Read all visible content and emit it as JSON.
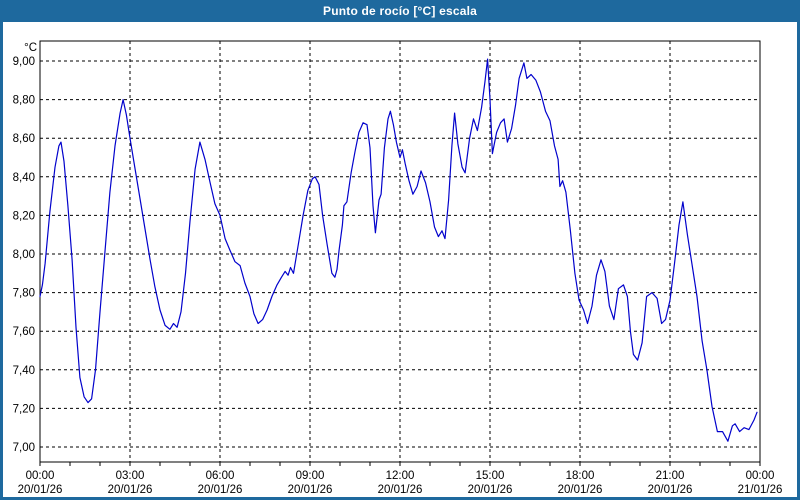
{
  "title_bar": {
    "title": "Punto de rocío [°C] escala"
  },
  "colors": {
    "title_bar_bg": "#1E699E",
    "window_border": "#1E699E",
    "title_text": "#FFFFFF",
    "series_line": "#0202CC",
    "grid": "#000000",
    "axis": "#000000",
    "plot_bg": "#FFFFFF"
  },
  "chart_data": {
    "type": "line",
    "title": "Punto de rocío [°C] escala",
    "unit_label": "°C",
    "xlabel": "",
    "ylabel": "°C",
    "ylim": [
      7.0,
      9.0
    ],
    "xlim_hours": [
      0,
      24
    ],
    "grid": true,
    "legend": false,
    "minor_x_tick_every_hours": 1,
    "y_ticks": [
      {
        "value": 9.0,
        "label": "9,00"
      },
      {
        "value": 8.8,
        "label": "8,80"
      },
      {
        "value": 8.6,
        "label": "8,60"
      },
      {
        "value": 8.4,
        "label": "8,40"
      },
      {
        "value": 8.2,
        "label": "8,20"
      },
      {
        "value": 8.0,
        "label": "8,00"
      },
      {
        "value": 7.8,
        "label": "7,80"
      },
      {
        "value": 7.6,
        "label": "7,60"
      },
      {
        "value": 7.4,
        "label": "7,40"
      },
      {
        "value": 7.2,
        "label": "7,20"
      },
      {
        "value": 7.0,
        "label": "7,00"
      }
    ],
    "x_ticks": [
      {
        "hour": 0,
        "time": "00:00",
        "date": "20/01/26"
      },
      {
        "hour": 3,
        "time": "03:00",
        "date": "20/01/26"
      },
      {
        "hour": 6,
        "time": "06:00",
        "date": "20/01/26"
      },
      {
        "hour": 9,
        "time": "09:00",
        "date": "20/01/26"
      },
      {
        "hour": 12,
        "time": "12:00",
        "date": "20/01/26"
      },
      {
        "hour": 15,
        "time": "15:00",
        "date": "20/01/26"
      },
      {
        "hour": 18,
        "time": "18:00",
        "date": "20/01/26"
      },
      {
        "hour": 21,
        "time": "21:00",
        "date": "20/01/26"
      },
      {
        "hour": 24,
        "time": "00:00",
        "date": "21/01/26"
      }
    ],
    "series": [
      {
        "name": "Punto de rocío [°C]",
        "color": "#0202CC",
        "points": [
          [
            0.0,
            7.78
          ],
          [
            0.08,
            7.84
          ],
          [
            0.17,
            7.95
          ],
          [
            0.33,
            8.22
          ],
          [
            0.5,
            8.45
          ],
          [
            0.63,
            8.56
          ],
          [
            0.7,
            8.58
          ],
          [
            0.8,
            8.48
          ],
          [
            0.93,
            8.25
          ],
          [
            1.07,
            7.97
          ],
          [
            1.2,
            7.62
          ],
          [
            1.33,
            7.36
          ],
          [
            1.47,
            7.26
          ],
          [
            1.6,
            7.23
          ],
          [
            1.72,
            7.25
          ],
          [
            1.85,
            7.4
          ],
          [
            2.0,
            7.7
          ],
          [
            2.17,
            8.02
          ],
          [
            2.33,
            8.32
          ],
          [
            2.5,
            8.56
          ],
          [
            2.67,
            8.73
          ],
          [
            2.77,
            8.8
          ],
          [
            2.88,
            8.72
          ],
          [
            3.0,
            8.6
          ],
          [
            3.17,
            8.44
          ],
          [
            3.33,
            8.29
          ],
          [
            3.5,
            8.13
          ],
          [
            3.67,
            7.97
          ],
          [
            3.83,
            7.83
          ],
          [
            4.0,
            7.71
          ],
          [
            4.17,
            7.63
          ],
          [
            4.33,
            7.61
          ],
          [
            4.45,
            7.64
          ],
          [
            4.57,
            7.62
          ],
          [
            4.7,
            7.7
          ],
          [
            4.85,
            7.9
          ],
          [
            5.0,
            8.17
          ],
          [
            5.17,
            8.44
          ],
          [
            5.33,
            8.58
          ],
          [
            5.5,
            8.49
          ],
          [
            5.67,
            8.37
          ],
          [
            5.83,
            8.26
          ],
          [
            6.0,
            8.2
          ],
          [
            6.17,
            8.08
          ],
          [
            6.33,
            8.02
          ],
          [
            6.5,
            7.96
          ],
          [
            6.67,
            7.94
          ],
          [
            6.83,
            7.85
          ],
          [
            7.0,
            7.78
          ],
          [
            7.13,
            7.69
          ],
          [
            7.27,
            7.64
          ],
          [
            7.42,
            7.66
          ],
          [
            7.57,
            7.71
          ],
          [
            7.73,
            7.78
          ],
          [
            7.9,
            7.84
          ],
          [
            8.05,
            7.88
          ],
          [
            8.17,
            7.91
          ],
          [
            8.27,
            7.89
          ],
          [
            8.35,
            7.93
          ],
          [
            8.45,
            7.9
          ],
          [
            8.6,
            8.04
          ],
          [
            8.77,
            8.2
          ],
          [
            8.93,
            8.33
          ],
          [
            9.08,
            8.39
          ],
          [
            9.17,
            8.4
          ],
          [
            9.3,
            8.36
          ],
          [
            9.42,
            8.2
          ],
          [
            9.57,
            8.05
          ],
          [
            9.73,
            7.9
          ],
          [
            9.83,
            7.88
          ],
          [
            9.9,
            7.92
          ],
          [
            9.97,
            8.02
          ],
          [
            10.08,
            8.15
          ],
          [
            10.13,
            8.25
          ],
          [
            10.23,
            8.27
          ],
          [
            10.37,
            8.42
          ],
          [
            10.5,
            8.53
          ],
          [
            10.63,
            8.63
          ],
          [
            10.77,
            8.68
          ],
          [
            10.9,
            8.67
          ],
          [
            11.0,
            8.55
          ],
          [
            11.1,
            8.25
          ],
          [
            11.18,
            8.11
          ],
          [
            11.3,
            8.28
          ],
          [
            11.37,
            8.31
          ],
          [
            11.48,
            8.55
          ],
          [
            11.6,
            8.7
          ],
          [
            11.68,
            8.74
          ],
          [
            11.78,
            8.67
          ],
          [
            11.88,
            8.58
          ],
          [
            12.0,
            8.5
          ],
          [
            12.08,
            8.54
          ],
          [
            12.17,
            8.47
          ],
          [
            12.3,
            8.38
          ],
          [
            12.43,
            8.31
          ],
          [
            12.57,
            8.35
          ],
          [
            12.7,
            8.43
          ],
          [
            12.85,
            8.37
          ],
          [
            13.0,
            8.27
          ],
          [
            13.15,
            8.14
          ],
          [
            13.28,
            8.09
          ],
          [
            13.4,
            8.12
          ],
          [
            13.5,
            8.08
          ],
          [
            13.62,
            8.28
          ],
          [
            13.73,
            8.56
          ],
          [
            13.82,
            8.73
          ],
          [
            13.93,
            8.57
          ],
          [
            14.07,
            8.45
          ],
          [
            14.17,
            8.42
          ],
          [
            14.32,
            8.6
          ],
          [
            14.45,
            8.7
          ],
          [
            14.58,
            8.64
          ],
          [
            14.72,
            8.76
          ],
          [
            14.83,
            8.89
          ],
          [
            14.92,
            9.01
          ],
          [
            15.0,
            8.8
          ],
          [
            15.08,
            8.52
          ],
          [
            15.22,
            8.63
          ],
          [
            15.35,
            8.68
          ],
          [
            15.47,
            8.7
          ],
          [
            15.58,
            8.58
          ],
          [
            15.72,
            8.65
          ],
          [
            15.85,
            8.77
          ],
          [
            15.97,
            8.91
          ],
          [
            16.13,
            8.99
          ],
          [
            16.23,
            8.91
          ],
          [
            16.37,
            8.93
          ],
          [
            16.53,
            8.9
          ],
          [
            16.68,
            8.84
          ],
          [
            16.85,
            8.74
          ],
          [
            17.0,
            8.69
          ],
          [
            17.15,
            8.56
          ],
          [
            17.27,
            8.49
          ],
          [
            17.33,
            8.35
          ],
          [
            17.42,
            8.38
          ],
          [
            17.53,
            8.32
          ],
          [
            17.68,
            8.12
          ],
          [
            17.83,
            7.9
          ],
          [
            17.97,
            7.76
          ],
          [
            18.12,
            7.71
          ],
          [
            18.25,
            7.64
          ],
          [
            18.4,
            7.73
          ],
          [
            18.55,
            7.89
          ],
          [
            18.7,
            7.97
          ],
          [
            18.83,
            7.91
          ],
          [
            18.98,
            7.73
          ],
          [
            19.13,
            7.66
          ],
          [
            19.28,
            7.82
          ],
          [
            19.45,
            7.84
          ],
          [
            19.58,
            7.78
          ],
          [
            19.68,
            7.6
          ],
          [
            19.78,
            7.48
          ],
          [
            19.92,
            7.45
          ],
          [
            20.07,
            7.54
          ],
          [
            20.22,
            7.78
          ],
          [
            20.4,
            7.8
          ],
          [
            20.57,
            7.77
          ],
          [
            20.72,
            7.64
          ],
          [
            20.85,
            7.66
          ],
          [
            21.0,
            7.76
          ],
          [
            21.15,
            7.95
          ],
          [
            21.3,
            8.15
          ],
          [
            21.43,
            8.27
          ],
          [
            21.58,
            8.1
          ],
          [
            21.73,
            7.95
          ],
          [
            21.9,
            7.78
          ],
          [
            22.07,
            7.55
          ],
          [
            22.23,
            7.4
          ],
          [
            22.4,
            7.21
          ],
          [
            22.58,
            7.08
          ],
          [
            22.75,
            7.08
          ],
          [
            22.93,
            7.03
          ],
          [
            23.08,
            7.11
          ],
          [
            23.17,
            7.12
          ],
          [
            23.32,
            7.08
          ],
          [
            23.47,
            7.1
          ],
          [
            23.63,
            7.09
          ],
          [
            23.8,
            7.14
          ],
          [
            23.9,
            7.18
          ]
        ]
      }
    ]
  }
}
